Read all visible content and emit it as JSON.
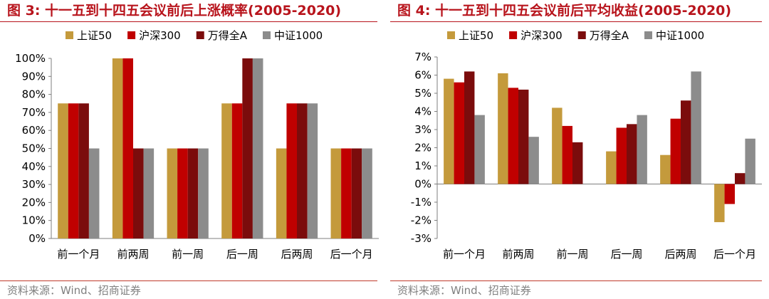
{
  "colors": {
    "title": "#b8141c",
    "source": "#808080",
    "axis": "#7f7f7f"
  },
  "panels": [
    {
      "title": "图 3: 十一五到十四五会议前后上涨概率(2005-2020)",
      "source": "资料来源：Wind、招商证券"
    },
    {
      "title": "图 4: 十一五到十四五会议前后平均收益(2005-2020)",
      "source": "资料来源：Wind、招商证券"
    }
  ],
  "chart_data": [
    {
      "type": "bar",
      "title": "图 3: 十一五到十四五会议前后上涨概率(2005-2020)",
      "categories": [
        "前一个月",
        "前两周",
        "前一周",
        "后一周",
        "后两周",
        "后一个月"
      ],
      "ylim": [
        0,
        100
      ],
      "ytick_step": 10,
      "tick_suffix": "%",
      "tick_decimals": 0,
      "grid": false,
      "legend": "top",
      "series": [
        {
          "name": "上证50",
          "color": "#c49a3c",
          "values": [
            75,
            100,
            50,
            75,
            50,
            50
          ]
        },
        {
          "name": "沪深300",
          "color": "#c00000",
          "values": [
            75,
            100,
            50,
            75,
            75,
            50
          ]
        },
        {
          "name": "万得全A",
          "color": "#7b0c0c",
          "values": [
            75,
            50,
            50,
            100,
            75,
            50
          ]
        },
        {
          "name": "中证1000",
          "color": "#8c8c8c",
          "values": [
            50,
            50,
            50,
            100,
            75,
            50
          ]
        }
      ]
    },
    {
      "type": "bar",
      "title": "图 4: 十一五到十四五会议前后平均收益(2005-2020)",
      "categories": [
        "前一个月",
        "前两周",
        "前一周",
        "后一周",
        "后两周",
        "后一个月"
      ],
      "ylim": [
        -3,
        7
      ],
      "ytick_step": 1,
      "tick_suffix": "%",
      "tick_decimals": 0,
      "grid": false,
      "legend": "top",
      "series": [
        {
          "name": "上证50",
          "color": "#c49a3c",
          "values": [
            5.8,
            6.1,
            4.2,
            1.8,
            1.6,
            -2.1
          ]
        },
        {
          "name": "沪深300",
          "color": "#c00000",
          "values": [
            5.6,
            5.3,
            3.2,
            3.1,
            3.6,
            -1.1
          ]
        },
        {
          "name": "万得全A",
          "color": "#7b0c0c",
          "values": [
            6.2,
            5.2,
            2.3,
            3.3,
            4.6,
            0.6
          ]
        },
        {
          "name": "中证1000",
          "color": "#8c8c8c",
          "values": [
            3.8,
            2.6,
            0.0,
            3.8,
            6.2,
            2.5
          ]
        }
      ]
    }
  ]
}
